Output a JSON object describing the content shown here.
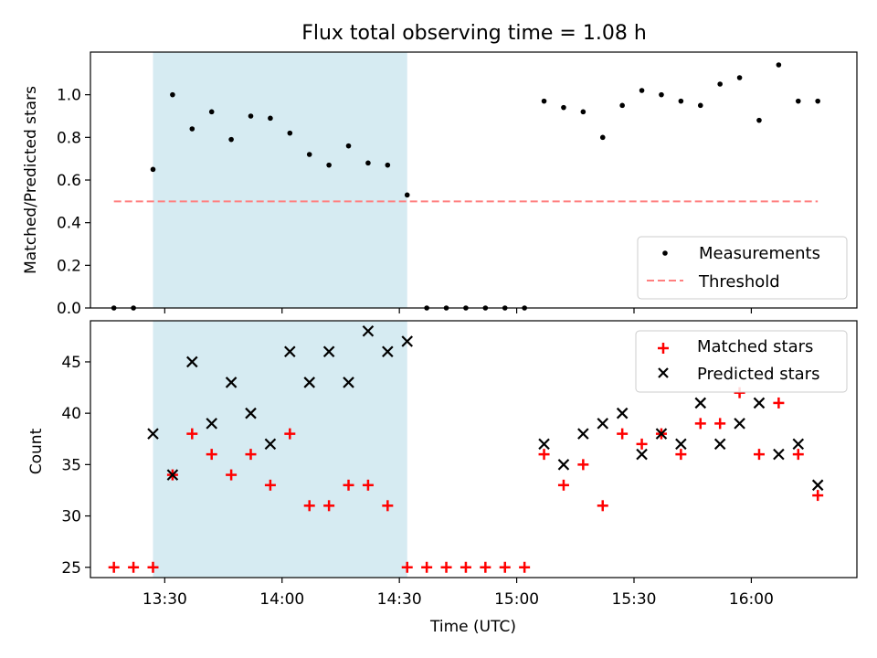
{
  "figure": {
    "title": "Flux total observing time = 1.08 h"
  },
  "chart_data": [
    {
      "type": "scatter",
      "panel": "top",
      "ylabel": "Matched/Predicted stars",
      "xlabel": "",
      "ylim": [
        0,
        1.2
      ],
      "yticks": [
        0.0,
        0.2,
        0.4,
        0.6,
        0.8,
        1.0
      ],
      "ytick_labels": [
        "0.0",
        "0.2",
        "0.4",
        "0.6",
        "0.8",
        "1.0"
      ],
      "grid": false,
      "legend_position": "lower-right",
      "shaded_interval": {
        "start": "13:27",
        "end": "14:32",
        "color": "#add8e6"
      },
      "series": [
        {
          "name": "Measurements",
          "marker": "dot",
          "color": "#000000",
          "x": [
            "13:17",
            "13:22",
            "13:27",
            "13:32",
            "13:37",
            "13:42",
            "13:47",
            "13:52",
            "13:57",
            "14:02",
            "14:07",
            "14:12",
            "14:17",
            "14:22",
            "14:27",
            "14:32",
            "14:37",
            "14:42",
            "14:47",
            "14:52",
            "14:57",
            "15:02",
            "15:07",
            "15:12",
            "15:17",
            "15:22",
            "15:27",
            "15:32",
            "15:37",
            "15:42",
            "15:47",
            "15:52",
            "15:57",
            "16:02",
            "16:07",
            "16:12",
            "16:17"
          ],
          "y": [
            0.0,
            0.0,
            0.65,
            1.0,
            0.84,
            0.92,
            0.79,
            0.9,
            0.89,
            0.82,
            0.72,
            0.67,
            0.76,
            0.68,
            0.67,
            0.53,
            0.0,
            0.0,
            0.0,
            0.0,
            0.0,
            0.0,
            0.97,
            0.94,
            0.92,
            0.8,
            0.95,
            1.02,
            1.0,
            0.97,
            0.95,
            1.05,
            1.08,
            0.88,
            1.14,
            0.97,
            0.97
          ]
        },
        {
          "name": "Threshold",
          "style": "dashed",
          "color": "#ff7f7f",
          "x": [
            "13:17",
            "16:17"
          ],
          "y": [
            0.5,
            0.5
          ]
        }
      ]
    },
    {
      "type": "scatter",
      "panel": "bottom",
      "xlabel": "Time (UTC)",
      "ylabel": "Count",
      "xlim": [
        "13:11",
        "16:27"
      ],
      "xticks": [
        "13:30",
        "14:00",
        "14:30",
        "15:00",
        "15:30",
        "16:00"
      ],
      "ylim": [
        24,
        49
      ],
      "yticks": [
        25,
        30,
        35,
        40,
        45
      ],
      "grid": false,
      "legend_position": "top-right",
      "shaded_interval": {
        "start": "13:27",
        "end": "14:32",
        "color": "#add8e6"
      },
      "series": [
        {
          "name": "Matched stars",
          "marker": "+",
          "color": "#ff0000",
          "x": [
            "13:17",
            "13:22",
            "13:27",
            "13:32",
            "13:37",
            "13:42",
            "13:47",
            "13:52",
            "13:57",
            "14:02",
            "14:07",
            "14:12",
            "14:17",
            "14:22",
            "14:27",
            "14:32",
            "14:37",
            "14:42",
            "14:47",
            "14:52",
            "14:57",
            "15:02",
            "15:07",
            "15:12",
            "15:17",
            "15:22",
            "15:27",
            "15:32",
            "15:37",
            "15:42",
            "15:47",
            "15:52",
            "15:57",
            "16:02",
            "16:07",
            "16:12",
            "16:17"
          ],
          "y": [
            25,
            25,
            25,
            34,
            38,
            36,
            34,
            36,
            33,
            38,
            31,
            31,
            33,
            33,
            31,
            25,
            25,
            25,
            25,
            25,
            25,
            25,
            36,
            33,
            35,
            31,
            38,
            37,
            38,
            36,
            39,
            39,
            42,
            36,
            41,
            36,
            32
          ]
        },
        {
          "name": "Predicted stars",
          "marker": "x",
          "color": "#000000",
          "x": [
            "13:27",
            "13:32",
            "13:37",
            "13:42",
            "13:47",
            "13:52",
            "13:57",
            "14:02",
            "14:07",
            "14:12",
            "14:17",
            "14:22",
            "14:27",
            "14:32",
            "15:07",
            "15:12",
            "15:17",
            "15:22",
            "15:27",
            "15:32",
            "15:37",
            "15:42",
            "15:47",
            "15:52",
            "15:57",
            "16:02",
            "16:07",
            "16:12",
            "16:17"
          ],
          "y": [
            38,
            34,
            45,
            39,
            43,
            40,
            37,
            46,
            43,
            46,
            43,
            48,
            46,
            47,
            37,
            35,
            38,
            39,
            40,
            36,
            38,
            37,
            41,
            37,
            39,
            41,
            36,
            37,
            33
          ]
        }
      ]
    }
  ]
}
